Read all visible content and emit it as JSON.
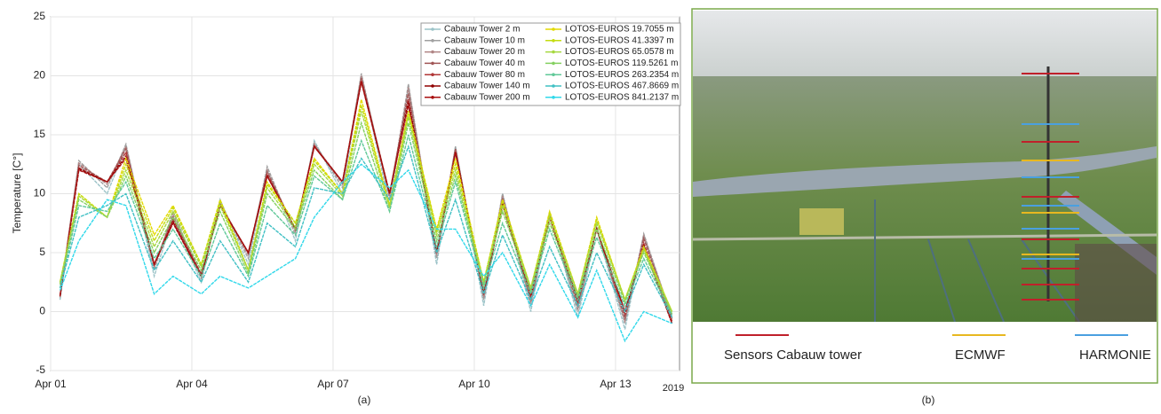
{
  "chart_data": {
    "type": "line",
    "ylabel": "Temperature [C°]",
    "caption": "(a)",
    "x_axis_year": "2019",
    "x": [
      0.2,
      0.6,
      1.2,
      1.6,
      2.2,
      2.6,
      3.2,
      3.6,
      4.2,
      4.6,
      5.2,
      5.6,
      6.2,
      6.6,
      7.2,
      7.6,
      8.2,
      8.6,
      9.2,
      9.6,
      10.2,
      10.6,
      11.2,
      11.6,
      12.2,
      12.6,
      13.2
    ],
    "xlim": [
      0,
      13.36
    ],
    "xticks": [
      {
        "value": 0,
        "label": "Apr 01"
      },
      {
        "value": 3,
        "label": "Apr 04"
      },
      {
        "value": 6,
        "label": "Apr 07"
      },
      {
        "value": 9,
        "label": "Apr 10"
      },
      {
        "value": 12,
        "label": "Apr 13"
      }
    ],
    "ylim": [
      -5,
      25
    ],
    "yticks": [
      -5,
      0,
      5,
      10,
      15,
      20,
      25
    ],
    "grid": true,
    "legend": "upper right",
    "series": [
      {
        "name": "Cabauw Tower 2 m",
        "color": "#9cc3c8",
        "values": [
          1,
          12.5,
          10,
          14,
          3,
          8,
          2.5,
          9.5,
          4,
          12,
          6,
          14.5,
          10,
          20,
          9,
          19,
          4,
          14,
          0.5,
          10,
          0,
          8.5,
          -0.5,
          7,
          -1.5,
          6.5,
          -1
        ]
      },
      {
        "name": "Cabauw Tower 10 m",
        "color": "#a0a0a0",
        "values": [
          1.2,
          12.8,
          10.5,
          14.2,
          3.5,
          8.5,
          2.8,
          9.3,
          4.5,
          12.3,
          6.5,
          14.3,
          10.5,
          20.2,
          9.5,
          19.3,
          4.5,
          14,
          1,
          10,
          0.5,
          8.3,
          0,
          7.2,
          -1,
          6.6,
          -0.5
        ]
      },
      {
        "name": "Cabauw Tower 20 m",
        "color": "#b08585",
        "values": [
          1.3,
          12.6,
          10.8,
          14,
          3.8,
          8.2,
          3,
          9.2,
          4.8,
          12,
          6.8,
          14.2,
          10.8,
          20,
          9.8,
          19,
          4.8,
          13.8,
          1.2,
          9.8,
          0.8,
          8.2,
          0.3,
          7.1,
          -0.8,
          6.4,
          -0.5
        ]
      },
      {
        "name": "Cabauw Tower 40 m",
        "color": "#a05555",
        "values": [
          1.4,
          12.4,
          11,
          13.8,
          4,
          8,
          3.2,
          9.1,
          5,
          11.8,
          7,
          14.1,
          11,
          19.8,
          10,
          18.5,
          5,
          13.8,
          1.4,
          9.6,
          1,
          8.1,
          0.6,
          7,
          -0.5,
          6.2,
          -0.6
        ]
      },
      {
        "name": "Cabauw Tower 80 m",
        "color": "#b03535",
        "values": [
          1.4,
          12.2,
          11,
          13.5,
          4,
          7.8,
          3.1,
          9,
          5,
          11.6,
          7,
          14,
          11,
          19.6,
          10,
          18,
          5,
          13.6,
          1.5,
          9.3,
          1.3,
          8,
          0.8,
          7,
          -0.2,
          5.8,
          -0.8
        ]
      },
      {
        "name": "Cabauw Tower 140 m",
        "color": "#900000",
        "values": [
          1.3,
          12.1,
          11,
          13.2,
          4,
          7.6,
          3,
          9,
          5,
          11.5,
          7,
          14,
          11,
          19.5,
          10,
          17.8,
          5,
          13.5,
          1.5,
          9.1,
          1.4,
          8,
          1,
          7,
          0,
          5.6,
          -1
        ]
      },
      {
        "name": "Cabauw Tower 200 m",
        "color": "#a81010",
        "values": [
          1.3,
          12,
          11,
          13,
          4,
          7.5,
          3,
          9,
          5,
          11.5,
          7,
          14,
          11,
          19.5,
          10,
          17.5,
          5,
          13.5,
          1.5,
          9,
          1.5,
          8,
          1,
          7,
          0,
          5.5,
          -1
        ]
      },
      {
        "name": "LOTOS-EUROS 19.7055 m",
        "color": "#e3d900",
        "values": [
          2.5,
          10,
          8,
          13,
          6.5,
          9,
          4,
          9.5,
          3.5,
          11,
          7.5,
          13,
          10,
          18,
          9,
          17,
          7,
          13,
          2.5,
          9.5,
          2,
          8.5,
          1.5,
          8,
          1,
          5.5,
          0
        ]
      },
      {
        "name": "LOTOS-EUROS 41.3397 m",
        "color": "#c4dc10",
        "values": [
          2.5,
          10,
          8,
          12.5,
          6,
          8.8,
          4,
          9.3,
          3.5,
          10.8,
          7.5,
          12.8,
          10,
          17.5,
          9,
          16.8,
          6.8,
          12.5,
          2.5,
          9.3,
          2,
          8.3,
          1.5,
          7.8,
          1,
          5.4,
          0
        ]
      },
      {
        "name": "LOTOS-EUROS 65.0578 m",
        "color": "#a6d840",
        "values": [
          2.4,
          9.8,
          8,
          12,
          5.5,
          8.5,
          3.8,
          9,
          3.5,
          10.5,
          7.2,
          12.5,
          9.8,
          17,
          8.8,
          16.5,
          6.5,
          12,
          2.4,
          9,
          2,
          8,
          1.5,
          7.5,
          1,
          5.2,
          0
        ]
      },
      {
        "name": "LOTOS-EUROS 119.5261 m",
        "color": "#84d060",
        "values": [
          2.3,
          9.5,
          8,
          11.5,
          5,
          8,
          3.5,
          8.5,
          3.2,
          10,
          7,
          12,
          9.5,
          16,
          8.5,
          16,
          6,
          11.5,
          2.3,
          8.5,
          1.8,
          7.5,
          1.3,
          7,
          0.8,
          5,
          -0.2
        ]
      },
      {
        "name": "LOTOS-EUROS 263.2354 m",
        "color": "#60c898",
        "values": [
          2,
          9,
          8.5,
          11,
          4.5,
          7,
          3,
          7.5,
          3,
          9,
          6.5,
          11.5,
          9.5,
          14.5,
          8.5,
          15,
          5.5,
          11,
          2,
          7.5,
          1.5,
          7,
          1,
          6.3,
          0.5,
          4.5,
          -0.3
        ]
      },
      {
        "name": "LOTOS-EUROS 467.8669 m",
        "color": "#40c0c4",
        "values": [
          2,
          8,
          9,
          10,
          3.5,
          6,
          2.5,
          6,
          2.5,
          7.5,
          5.5,
          10.5,
          10,
          13,
          9.5,
          14,
          5,
          9.5,
          1.5,
          6.5,
          1,
          5.5,
          0.5,
          5,
          0,
          4,
          -0.5
        ]
      },
      {
        "name": "LOTOS-EUROS 841.2137 m",
        "color": "#30d8ea",
        "values": [
          1.8,
          6,
          9.5,
          9,
          1.5,
          3,
          1.5,
          3,
          2,
          3,
          4.5,
          8,
          11,
          12.5,
          10.5,
          12,
          7,
          7,
          3,
          5,
          0.5,
          4,
          -0.5,
          3.5,
          -2.5,
          0,
          -1
        ]
      }
    ]
  },
  "photo_panel": {
    "caption": "(b)",
    "legend": [
      "Sensors Cabauw tower",
      "ECMWF",
      "HARMONIE"
    ]
  }
}
